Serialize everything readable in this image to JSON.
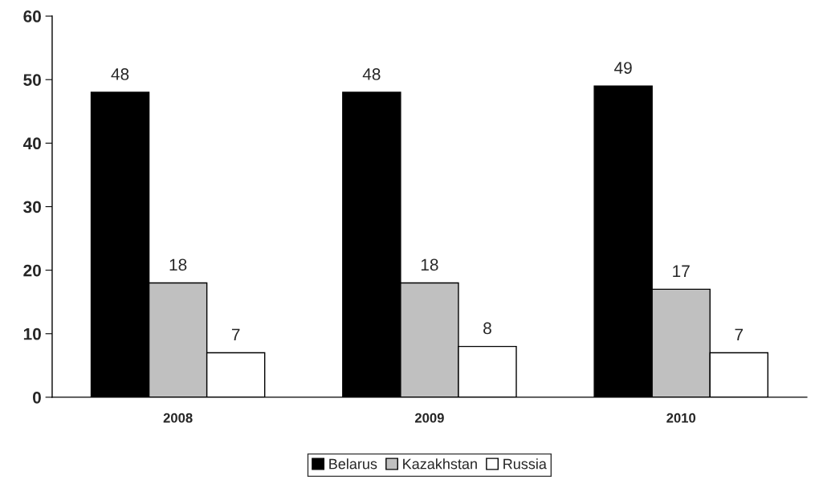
{
  "chart_data": {
    "type": "bar",
    "categories": [
      "2008",
      "2009",
      "2010"
    ],
    "series": [
      {
        "name": "Belarus",
        "color": "#000000",
        "values": [
          48,
          48,
          49
        ]
      },
      {
        "name": "Kazakhstan",
        "color": "#c0c0c0",
        "values": [
          18,
          18,
          17
        ]
      },
      {
        "name": "Russia",
        "color": "#ffffff",
        "values": [
          7,
          8,
          7
        ]
      }
    ],
    "ylim": [
      0,
      60
    ],
    "yticks": [
      0,
      10,
      20,
      30,
      40,
      50,
      60
    ],
    "grid": false,
    "legend": "bottom",
    "data_labels": true
  }
}
